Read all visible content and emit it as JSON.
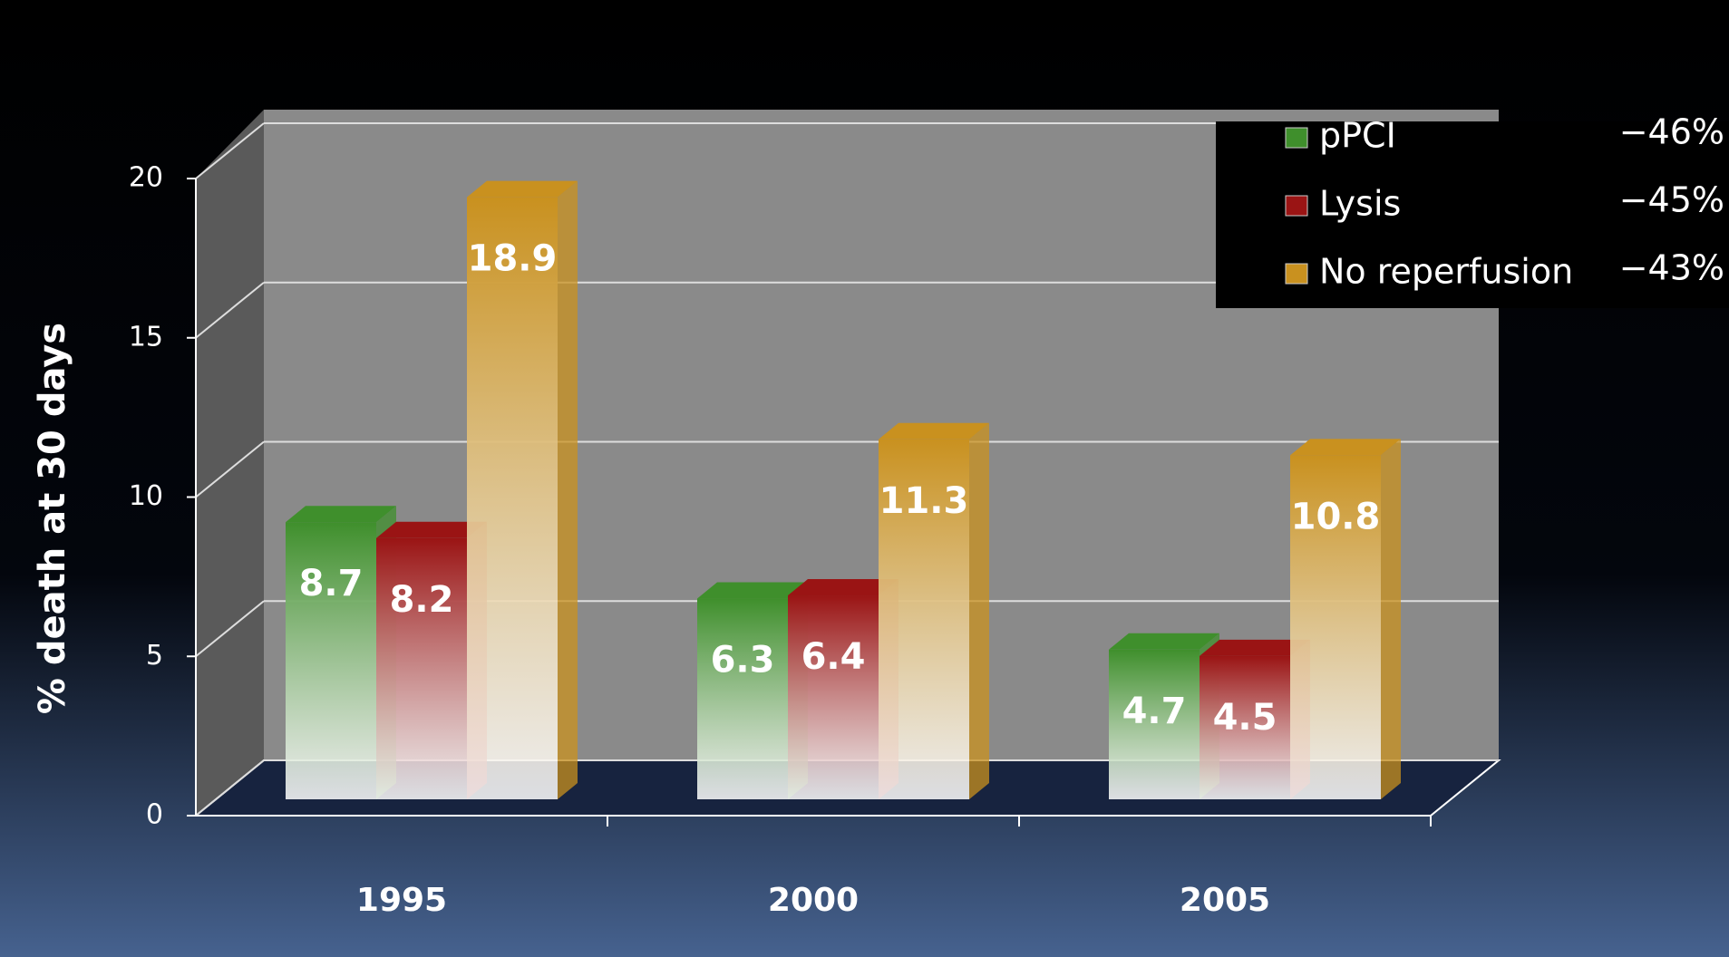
{
  "chart_data": {
    "type": "bar3d",
    "y_label": "% death at 30 days",
    "categories": [
      "1995",
      "2000",
      "2005"
    ],
    "series": [
      {
        "name": "pPCI",
        "color": "#3f8f2c",
        "values": [
          8.7,
          6.3,
          4.7
        ],
        "change": "−46%"
      },
      {
        "name": "Lysis",
        "color": "#9a1414",
        "values": [
          8.2,
          6.4,
          4.5
        ],
        "change": "−45%"
      },
      {
        "name": "No reperfusion",
        "color": "#c9911f",
        "values": [
          18.9,
          11.3,
          10.8
        ],
        "change": "−43%"
      }
    ],
    "ylim": [
      0,
      20
    ],
    "yticks": [
      0,
      5,
      10,
      15,
      20
    ],
    "grid": true
  }
}
